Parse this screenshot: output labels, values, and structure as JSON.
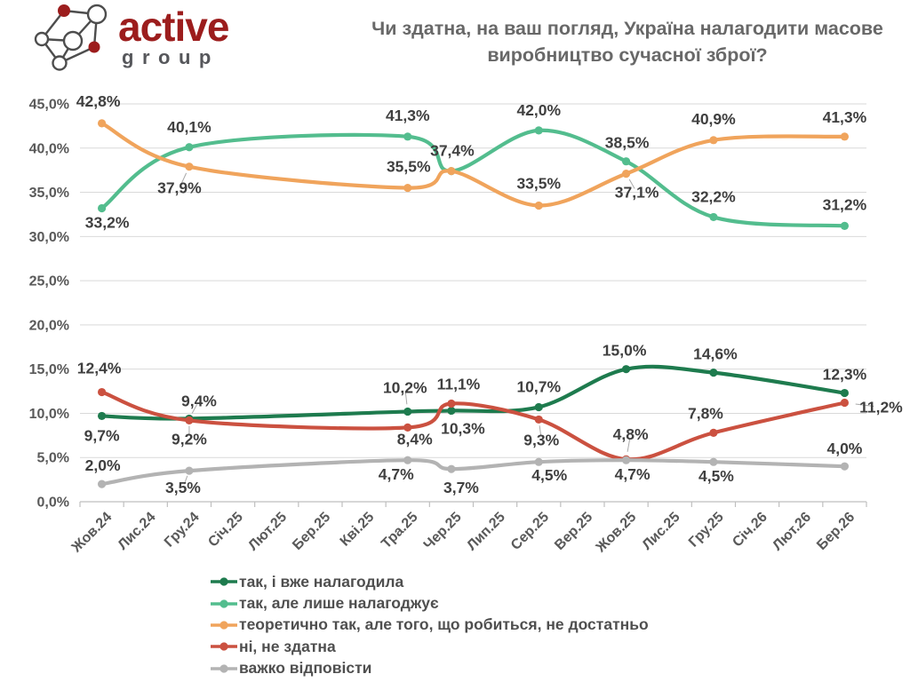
{
  "logo": {
    "word_active": "active",
    "word_group": "group",
    "accent_color": "#9c1d1d",
    "icon_stroke_color": "#4d4d4d"
  },
  "title": "Чи здатна, на ваш погляд, Україна налагодити масове виробництво сучасної зброї?",
  "chart_data": {
    "type": "line",
    "title": "Чи здатна, на ваш погляд, Україна налагодити масове виробництво сучасної зброї?",
    "xlabel": "",
    "ylabel": "",
    "ylim": [
      0,
      45
    ],
    "y_step": 5,
    "y_tick_labels": [
      "0,0%",
      "5,0%",
      "10,0%",
      "15,0%",
      "20,0%",
      "25,0%",
      "30,0%",
      "35,0%",
      "40,0%",
      "45,0%"
    ],
    "grid": true,
    "legend_position": "bottom",
    "categories": [
      "Жов.24",
      "Лис.24",
      "Гру.24",
      "Січ.25",
      "Лют.25",
      "Бер.25",
      "Кві.25",
      "Тра.25",
      "Чер.25",
      "Лип.25",
      "Сер.25",
      "Вер.25",
      "Жов.25",
      "Лис.25",
      "Гру.25",
      "Січ.26",
      "Лют.26",
      "Бер.26"
    ],
    "wave_indices": [
      0,
      2,
      7,
      8,
      10,
      12,
      14,
      17
    ],
    "series": [
      {
        "name": "так, і вже налагодила",
        "color": "#1e7b4e",
        "values": [
          9.7,
          9.4,
          10.2,
          10.3,
          10.7,
          15.0,
          14.6,
          12.3
        ],
        "label_offsets": [
          [
            0,
            22,
            0
          ],
          [
            11,
            -20,
            1
          ],
          [
            -3,
            -27,
            1
          ],
          [
            13,
            20,
            0
          ],
          [
            0,
            -23,
            0
          ],
          [
            -2,
            -21,
            0
          ],
          [
            2,
            -21,
            0
          ],
          [
            0,
            -21,
            0
          ]
        ]
      },
      {
        "name": "так, але лише налагоджує",
        "color": "#53bd8e",
        "values": [
          33.2,
          40.1,
          41.3,
          37.4,
          42.0,
          38.5,
          32.2,
          31.2
        ],
        "label_offsets": [
          [
            6,
            16,
            0
          ],
          [
            0,
            -23,
            0
          ],
          [
            0,
            -24,
            0
          ],
          null,
          [
            0,
            -23,
            0
          ],
          [
            1,
            -21,
            0
          ],
          [
            0,
            -23,
            0
          ],
          [
            0,
            -24,
            0
          ]
        ]
      },
      {
        "name": "теоретично так, але того, що робиться, не достатньо",
        "color": "#f0a45c",
        "values": [
          42.8,
          37.9,
          35.5,
          37.4,
          33.5,
          37.1,
          40.9,
          41.3
        ],
        "label_offsets": [
          [
            -4,
            -25,
            0
          ],
          [
            -11,
            24,
            1
          ],
          [
            1,
            -24,
            0
          ],
          [
            1,
            -23,
            0
          ],
          [
            0,
            -25,
            0
          ],
          [
            12,
            21,
            1
          ],
          [
            0,
            -24,
            0
          ],
          [
            0,
            -22,
            0
          ]
        ]
      },
      {
        "name": "ні, не здатна",
        "color": "#cb5140",
        "values": [
          12.4,
          9.2,
          8.4,
          11.1,
          9.3,
          4.8,
          7.8,
          11.2
        ],
        "label_offsets": [
          [
            -3,
            -27,
            0
          ],
          [
            0,
            21,
            1
          ],
          [
            8,
            13,
            0
          ],
          [
            8,
            -22,
            0
          ],
          [
            3,
            23,
            1
          ],
          [
            5,
            -28,
            1
          ],
          [
            -9,
            -22,
            0
          ],
          [
            41,
            5,
            1
          ]
        ]
      },
      {
        "name": "важко відповісти",
        "color": "#b3b3b3",
        "values": [
          2.0,
          3.5,
          4.7,
          3.7,
          4.5,
          4.7,
          4.5,
          4.0
        ],
        "label_offsets": [
          [
            1,
            -21,
            0
          ],
          [
            -7,
            19,
            1
          ],
          [
            -13,
            16,
            0
          ],
          [
            11,
            21,
            0
          ],
          [
            12,
            15,
            0
          ],
          [
            7,
            16,
            0
          ],
          [
            3,
            16,
            0
          ],
          [
            0,
            -20,
            0
          ]
        ]
      }
    ],
    "colors": {
      "gridline": "#d9d9d9",
      "axis_line": "#bfbfbf",
      "axis_label": "#595959",
      "point_label": "#3f3f3f",
      "leader_line": "#a9a9a9"
    }
  }
}
